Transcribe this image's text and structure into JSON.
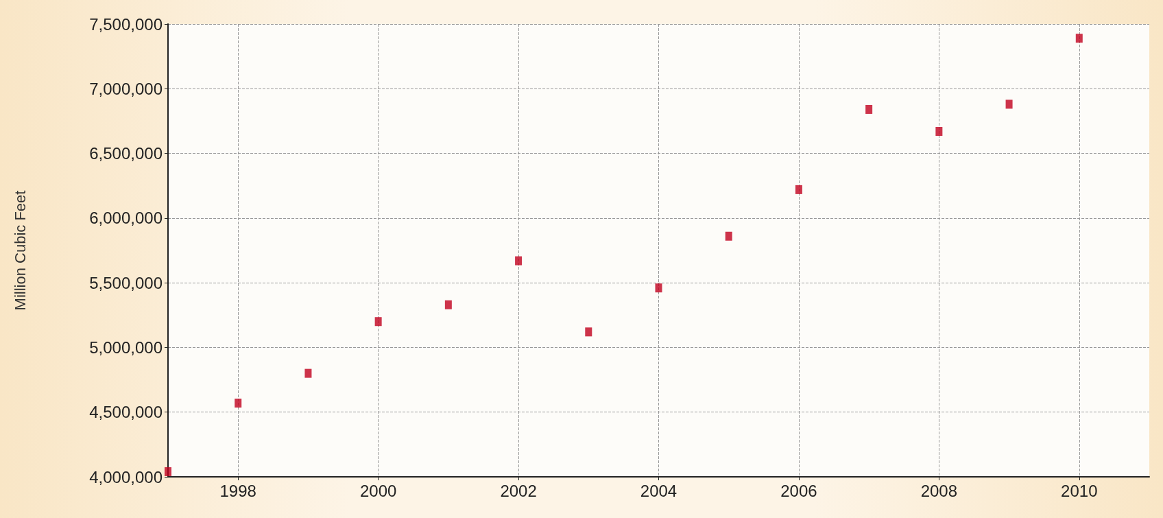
{
  "chart_data": {
    "type": "scatter",
    "ylabel": "Million Cubic Feet",
    "x": [
      1997,
      1998,
      1999,
      2000,
      2001,
      2002,
      2003,
      2004,
      2005,
      2006,
      2007,
      2008,
      2009,
      2010
    ],
    "series": [
      {
        "color": "#c0001e",
        "values": [
          4040000,
          4570000,
          4800000,
          5200000,
          5330000,
          5670000,
          5120000,
          5460000,
          5860000,
          6220000,
          6840000,
          6670000,
          6880000,
          7390000
        ]
      }
    ],
    "xlim": [
      1997,
      2011
    ],
    "xticks": [
      1998,
      2000,
      2002,
      2004,
      2006,
      2008,
      2010
    ],
    "ylim": [
      4000000,
      7500000
    ],
    "yticks": [
      {
        "value": 4000000,
        "label": "4,000,000"
      },
      {
        "value": 4500000,
        "label": "4,500,000"
      },
      {
        "value": 5000000,
        "label": "5,000,000"
      },
      {
        "value": 5500000,
        "label": "5,500,000"
      },
      {
        "value": 6000000,
        "label": "6,000,000"
      },
      {
        "value": 6500000,
        "label": "6,500,000"
      },
      {
        "value": 7000000,
        "label": "7,000,000"
      },
      {
        "value": 7500000,
        "label": "7,500,000"
      }
    ],
    "grid": true,
    "marker": "square"
  }
}
